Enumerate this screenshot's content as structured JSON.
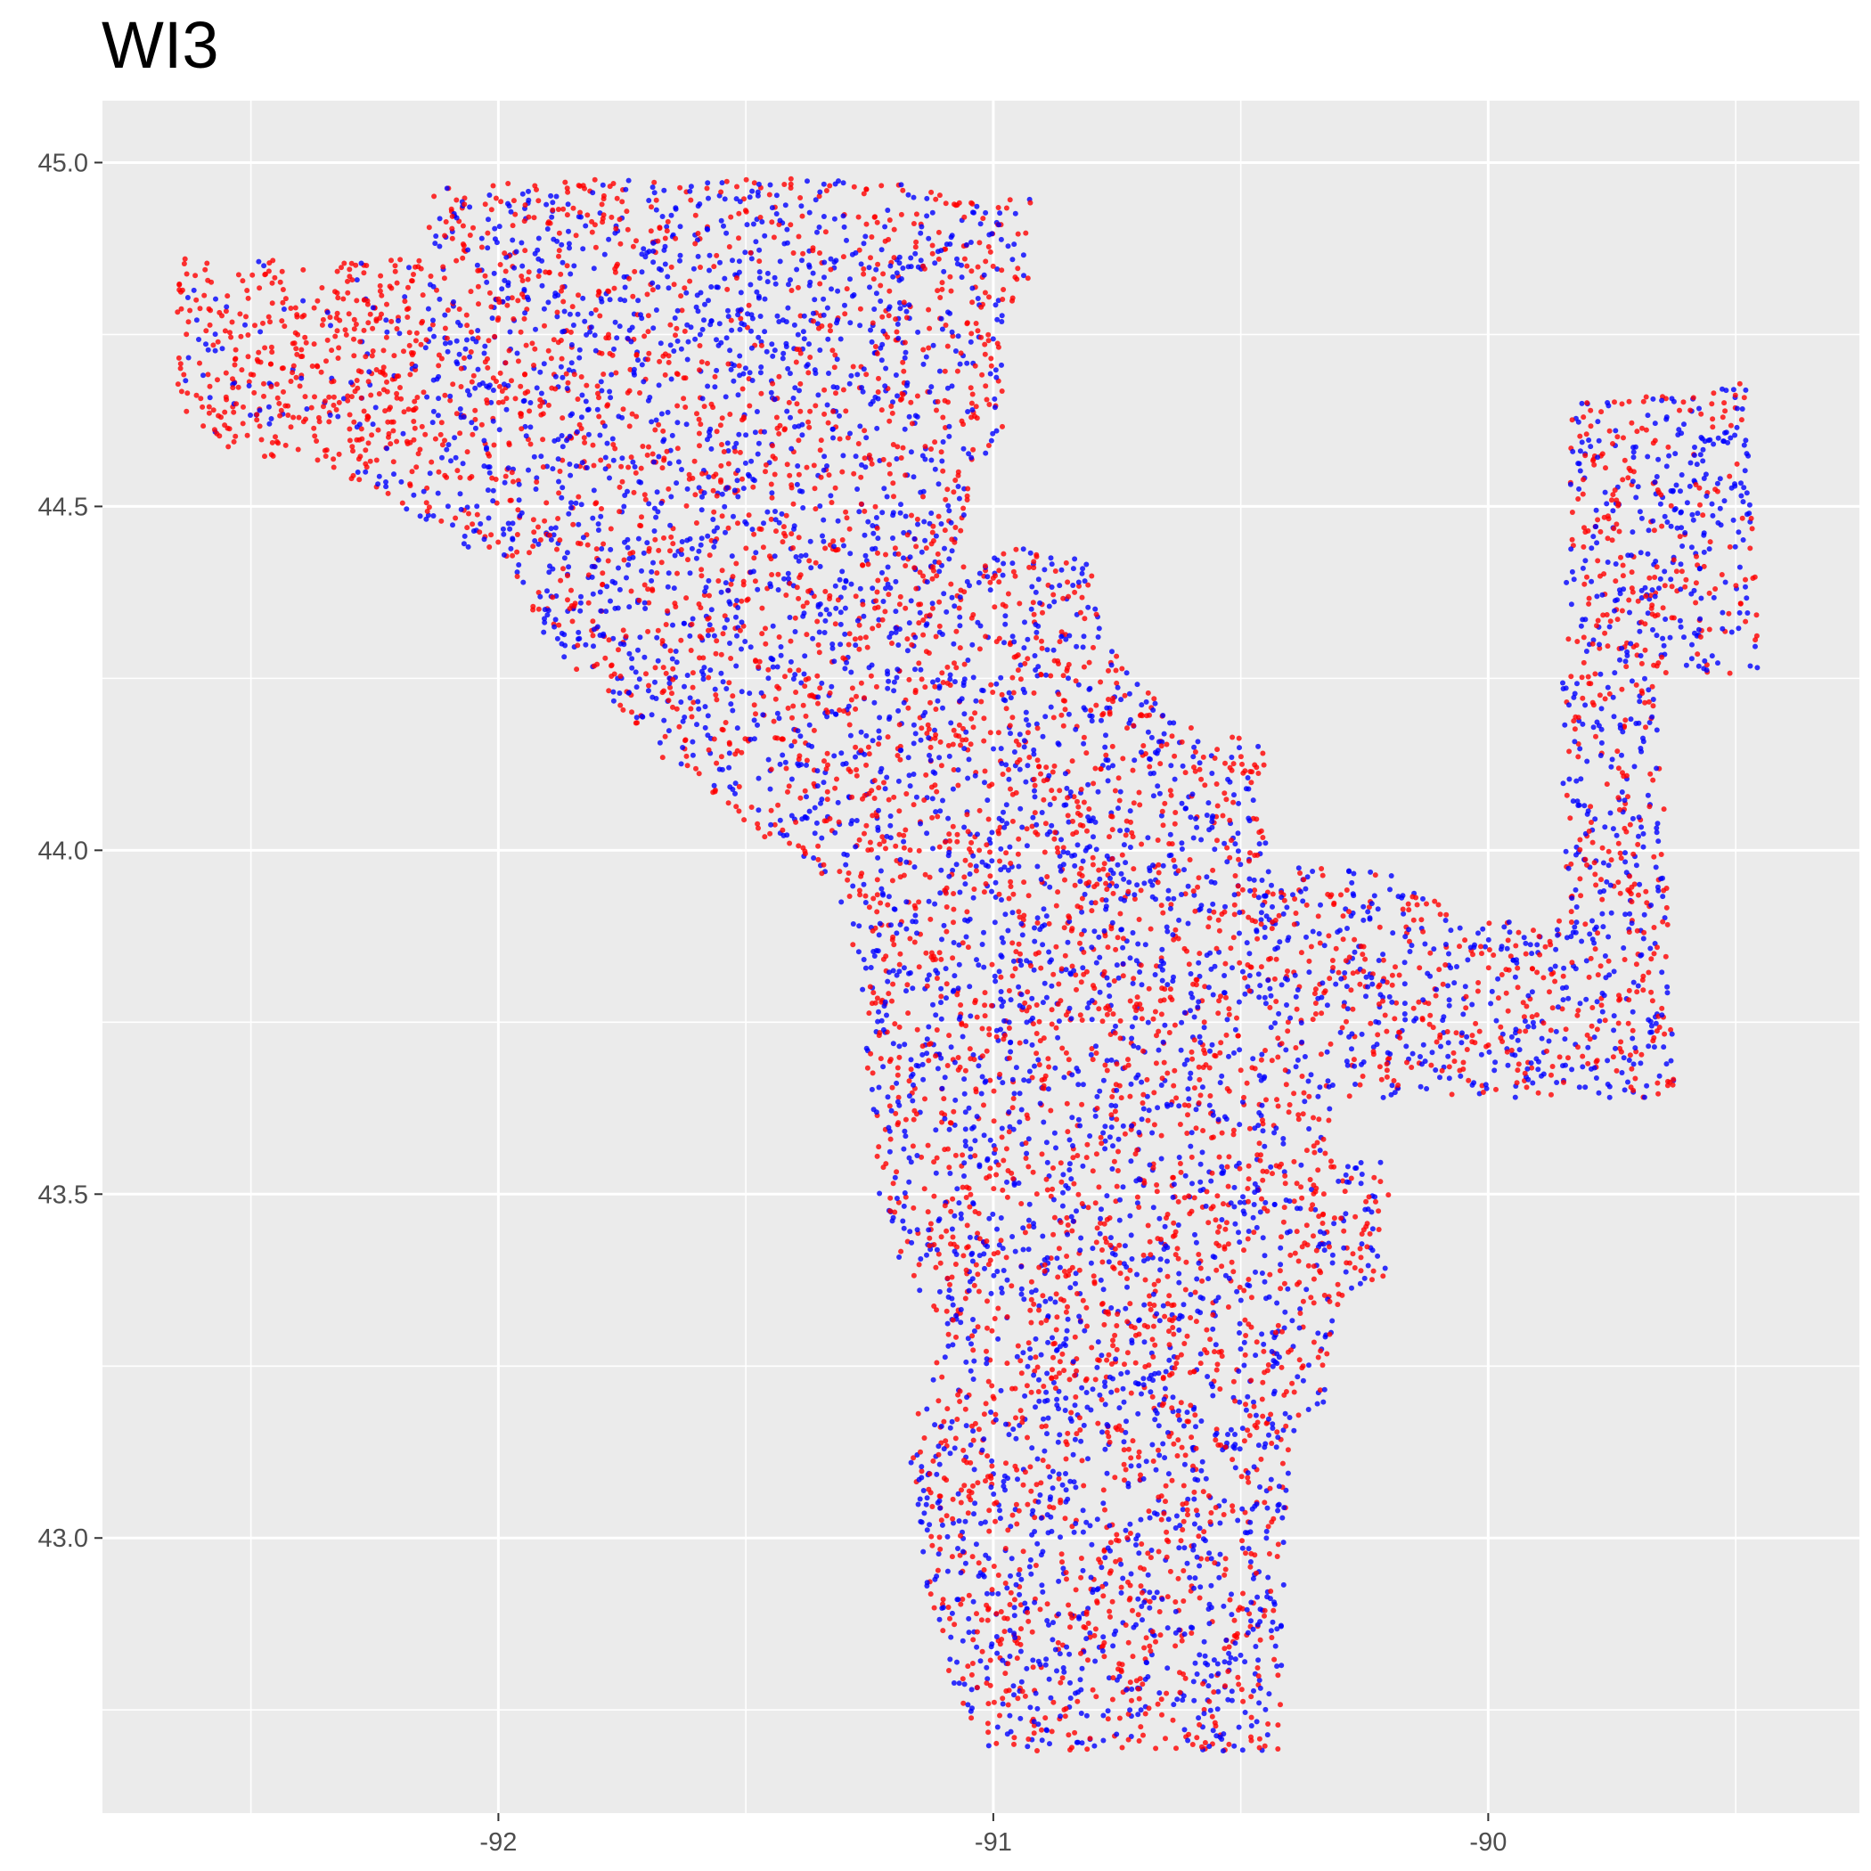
{
  "chart_data": {
    "type": "scatter",
    "title": "WI3",
    "xlabel": "",
    "ylabel": "",
    "xlim": [
      -92.8,
      -89.25
    ],
    "ylim": [
      42.6,
      45.09
    ],
    "x_ticks": [
      {
        "value": -92,
        "label": "-92"
      },
      {
        "value": -91,
        "label": "-91"
      },
      {
        "value": -90,
        "label": "-90"
      }
    ],
    "y_ticks": [
      {
        "value": 43.0,
        "label": "43.0"
      },
      {
        "value": 43.5,
        "label": "43.5"
      },
      {
        "value": 44.0,
        "label": "44.0"
      },
      {
        "value": 44.5,
        "label": "44.5"
      },
      {
        "value": 45.0,
        "label": "45.0"
      }
    ],
    "grid": true,
    "legend": "none",
    "series_colors": [
      "#ff0000",
      "#0000ff"
    ],
    "background": "#ebebeb",
    "region_outline": [
      [
        -92.65,
        44.86
      ],
      [
        -92.15,
        44.86
      ],
      [
        -92.13,
        44.97
      ],
      [
        -91.5,
        44.98
      ],
      [
        -91.2,
        44.97
      ],
      [
        -90.92,
        44.95
      ],
      [
        -90.93,
        44.83
      ],
      [
        -90.98,
        44.78
      ],
      [
        -90.98,
        44.6
      ],
      [
        -91.05,
        44.55
      ],
      [
        -91.05,
        44.4
      ],
      [
        -90.95,
        44.45
      ],
      [
        -90.8,
        44.42
      ],
      [
        -90.75,
        44.3
      ],
      [
        -90.65,
        44.2
      ],
      [
        -90.45,
        44.15
      ],
      [
        -90.45,
        43.98
      ],
      [
        -90.2,
        43.97
      ],
      [
        -90.05,
        43.9
      ],
      [
        -89.95,
        43.9
      ],
      [
        -89.85,
        43.9
      ],
      [
        -89.85,
        44.25
      ],
      [
        -89.83,
        44.65
      ],
      [
        -89.48,
        44.68
      ],
      [
        -89.45,
        44.26
      ],
      [
        -89.65,
        44.25
      ],
      [
        -89.65,
        44.15
      ],
      [
        -89.62,
        43.64
      ],
      [
        -90.32,
        43.64
      ],
      [
        -90.32,
        43.55
      ],
      [
        -90.2,
        43.55
      ],
      [
        -90.2,
        43.38
      ],
      [
        -90.3,
        43.35
      ],
      [
        -90.33,
        43.2
      ],
      [
        -90.4,
        43.15
      ],
      [
        -90.42,
        42.69
      ],
      [
        -91.0,
        42.69
      ],
      [
        -91.07,
        42.75
      ],
      [
        -91.15,
        42.95
      ],
      [
        -91.17,
        43.1
      ],
      [
        -91.15,
        43.2
      ],
      [
        -91.1,
        43.3
      ],
      [
        -91.2,
        43.4
      ],
      [
        -91.23,
        43.5
      ],
      [
        -91.25,
        43.65
      ],
      [
        -91.27,
        43.82
      ],
      [
        -91.32,
        43.95
      ],
      [
        -91.42,
        44.0
      ],
      [
        -91.6,
        44.08
      ],
      [
        -91.75,
        44.2
      ],
      [
        -91.9,
        44.3
      ],
      [
        -91.98,
        44.42
      ],
      [
        -92.1,
        44.45
      ],
      [
        -92.2,
        44.5
      ],
      [
        -92.35,
        44.56
      ],
      [
        -92.55,
        44.58
      ],
      [
        -92.65,
        44.65
      ]
    ]
  }
}
